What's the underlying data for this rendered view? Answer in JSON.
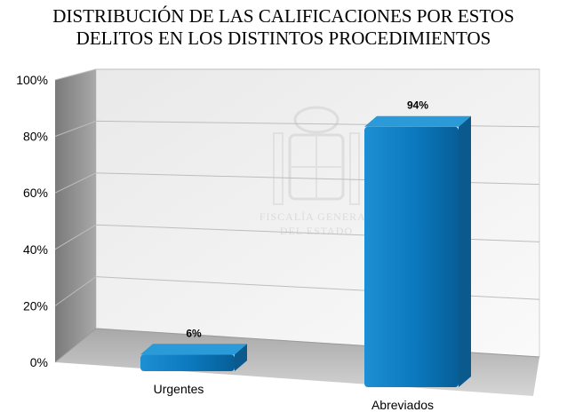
{
  "chart_data": {
    "type": "bar",
    "title": "DISTRIBUCIÓN DE LAS CALIFICACIONES POR ESTOS DELITOS EN LOS DISTINTOS PROCEDIMIENTOS",
    "categories": [
      "Urgentes",
      "Abreviados"
    ],
    "values": [
      6,
      94
    ],
    "data_labels": [
      "6%",
      "94%"
    ],
    "ylim": [
      0,
      100
    ],
    "yticks": [
      "0%",
      "20%",
      "40%",
      "60%",
      "80%",
      "100%"
    ],
    "xlabel": "",
    "ylabel": "",
    "grid": true,
    "legend": "none",
    "style": "3d",
    "colors": {
      "bar": "#0f7fc4",
      "bar_top": "#2b9ad8",
      "bar_side": "#0a5a8e",
      "back_wall": "#f1f1f1",
      "side_wall": "#8e8e8e",
      "floor": "#bdbdbd"
    }
  },
  "watermark": {
    "line1": "FISCALÍA GENERAL",
    "line2": "DEL ESTADO"
  }
}
